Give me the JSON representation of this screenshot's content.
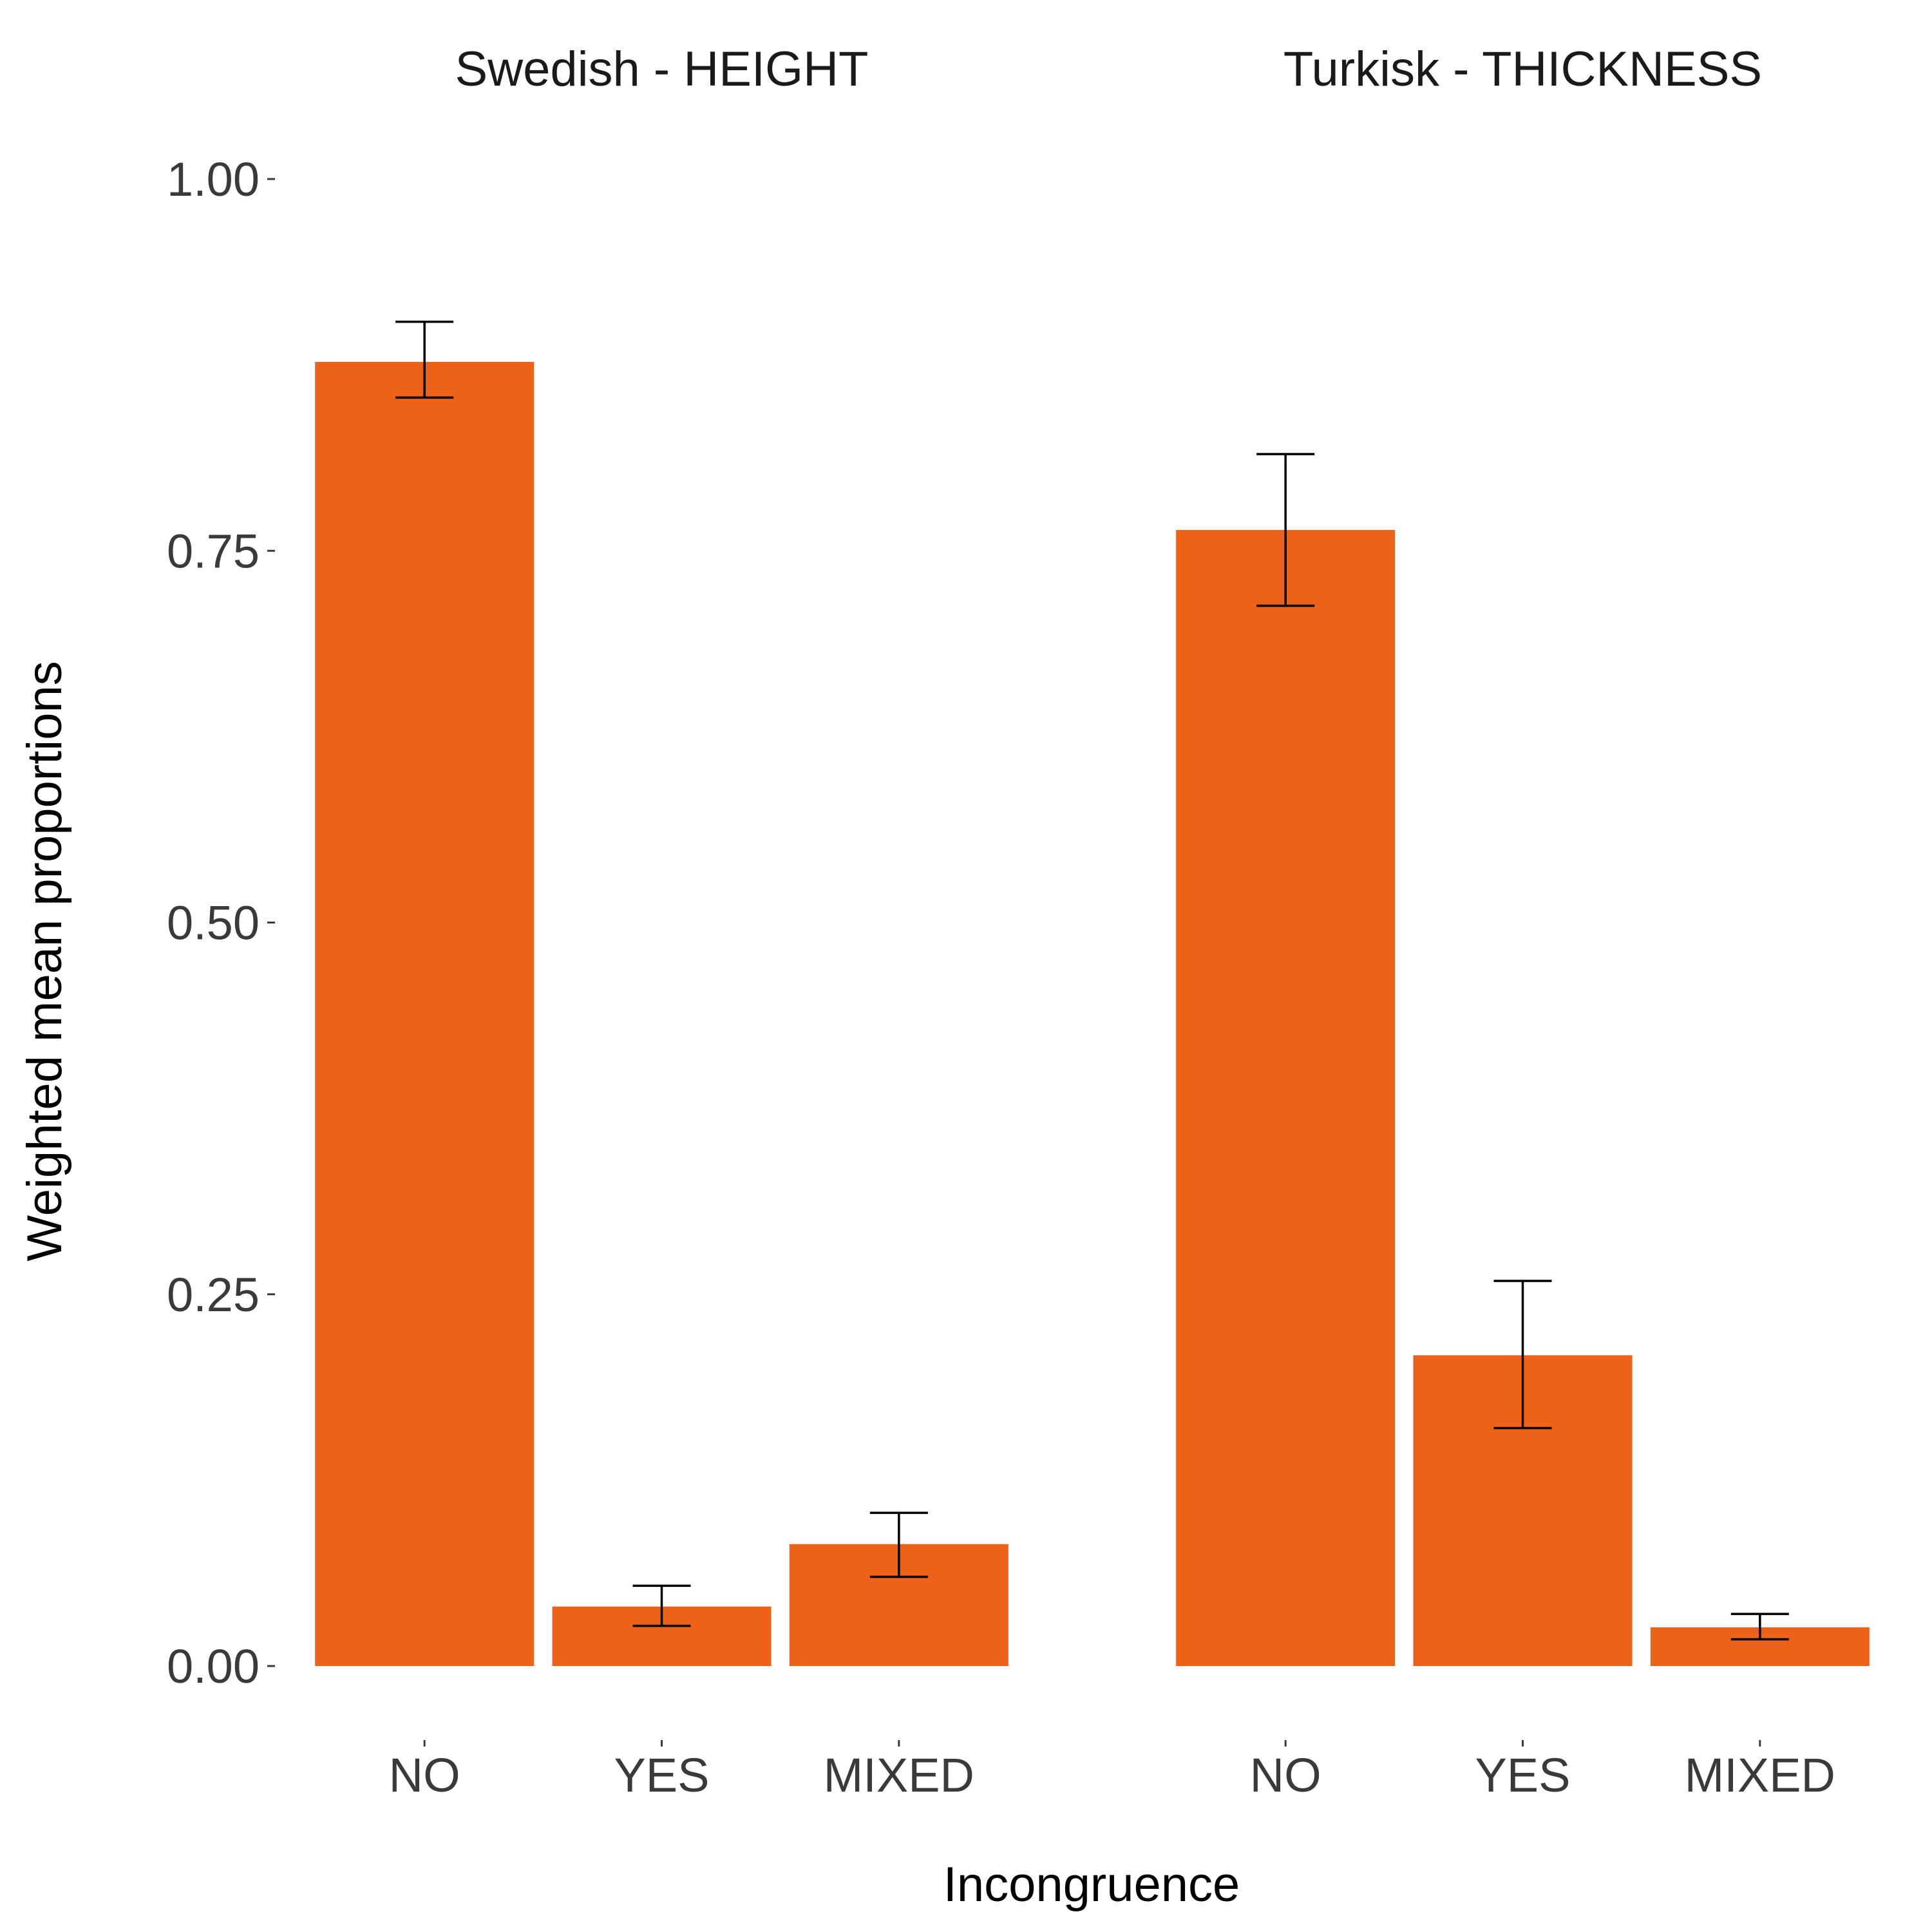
{
  "chart_data": {
    "type": "bar",
    "ylabel": "Weighted mean proportions",
    "xlabel": "Incongruence",
    "ylim": [
      0,
      1
    ],
    "yticks": [
      "0.00",
      "0.25",
      "0.50",
      "0.75",
      "1.00"
    ],
    "ytick_values": [
      0,
      0.25,
      0.5,
      0.75,
      1.0
    ],
    "grid": false,
    "legend": "none",
    "bar_color": "#ED6119",
    "categories": [
      "NO",
      "YES",
      "MIXED"
    ],
    "panels": [
      {
        "title": "Swedish - HEIGHT",
        "values": [
          0.877,
          0.04,
          0.082
        ],
        "err_low": [
          0.853,
          0.027,
          0.06
        ],
        "err_high": [
          0.904,
          0.054,
          0.103
        ]
      },
      {
        "title": "Turkisk - THICKNESS",
        "values": [
          0.764,
          0.209,
          0.026
        ],
        "err_low": [
          0.713,
          0.16,
          0.018
        ],
        "err_high": [
          0.815,
          0.259,
          0.035
        ]
      }
    ]
  }
}
